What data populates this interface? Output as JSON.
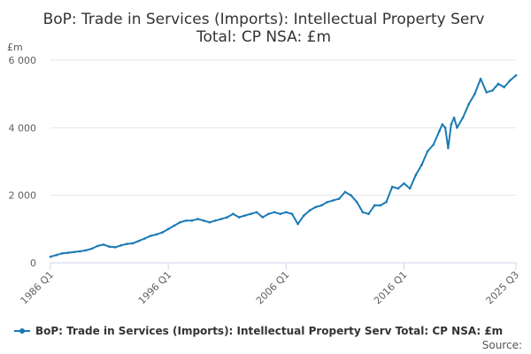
{
  "chart_data": {
    "type": "line",
    "title_lines": [
      "BoP: Trade in Services (Imports): Intellectual Property Serv",
      "Total: CP NSA: £m"
    ],
    "ylabel": "£m",
    "y_ticks": [
      0,
      2000,
      4000,
      6000
    ],
    "y_tick_labels": [
      "0",
      "2 000",
      "4 000",
      "6 000"
    ],
    "ylim": [
      0,
      6000
    ],
    "x_range": [
      1986.0,
      2025.5
    ],
    "x_ticks": [
      {
        "x": 1986.0,
        "label": "1986 Q1"
      },
      {
        "x": 1996.0,
        "label": "1996 Q1"
      },
      {
        "x": 2006.0,
        "label": "2006 Q1"
      },
      {
        "x": 2016.0,
        "label": "2016 Q1"
      },
      {
        "x": 2025.5,
        "label": "2025 Q3"
      }
    ],
    "grid": true,
    "legend_position": "bottom",
    "series": [
      {
        "name": "BoP: Trade in Services (Imports): Intellectual Property Serv Total: CP NSA: £m",
        "color": "#1a7ab5",
        "x": [
          1986.0,
          1986.5,
          1987.0,
          1987.5,
          1988.0,
          1988.5,
          1989.0,
          1989.5,
          1990.0,
          1990.5,
          1991.0,
          1991.5,
          1992.0,
          1992.5,
          1993.0,
          1993.5,
          1994.0,
          1994.5,
          1995.0,
          1995.5,
          1996.0,
          1996.5,
          1997.0,
          1997.5,
          1998.0,
          1998.5,
          1999.0,
          1999.5,
          2000.0,
          2000.5,
          2001.0,
          2001.5,
          2002.0,
          2002.5,
          2003.0,
          2003.5,
          2004.0,
          2004.5,
          2005.0,
          2005.5,
          2006.0,
          2006.5,
          2007.0,
          2007.5,
          2008.0,
          2008.5,
          2009.0,
          2009.5,
          2010.0,
          2010.5,
          2011.0,
          2011.5,
          2012.0,
          2012.5,
          2013.0,
          2013.5,
          2014.0,
          2014.5,
          2015.0,
          2015.5,
          2016.0,
          2016.5,
          2017.0,
          2017.5,
          2018.0,
          2018.5,
          2019.0,
          2019.25,
          2019.5,
          2019.75,
          2020.0,
          2020.25,
          2020.5,
          2021.0,
          2021.5,
          2022.0,
          2022.5,
          2023.0,
          2023.5,
          2024.0,
          2024.5,
          2025.0,
          2025.5
        ],
        "values": [
          180,
          230,
          280,
          300,
          320,
          340,
          370,
          420,
          500,
          540,
          480,
          460,
          520,
          560,
          580,
          650,
          720,
          800,
          840,
          900,
          1000,
          1100,
          1200,
          1250,
          1250,
          1300,
          1250,
          1200,
          1250,
          1300,
          1350,
          1450,
          1350,
          1400,
          1450,
          1500,
          1350,
          1450,
          1500,
          1450,
          1500,
          1450,
          1150,
          1400,
          1550,
          1650,
          1700,
          1800,
          1850,
          1900,
          2100,
          2000,
          1800,
          1500,
          1450,
          1700,
          1700,
          1800,
          2250,
          2200,
          2350,
          2200,
          2600,
          2900,
          3300,
          3500,
          3900,
          4100,
          4000,
          3400,
          4100,
          4300,
          4000,
          4300,
          4700,
          5000,
          5450,
          5050,
          5100,
          5300,
          5200,
          5400,
          5550
        ]
      }
    ],
    "legend_label": "BoP: Trade in Services (Imports): Intellectual Property Serv Total: CP NSA: £m",
    "source_label": "Source:"
  }
}
